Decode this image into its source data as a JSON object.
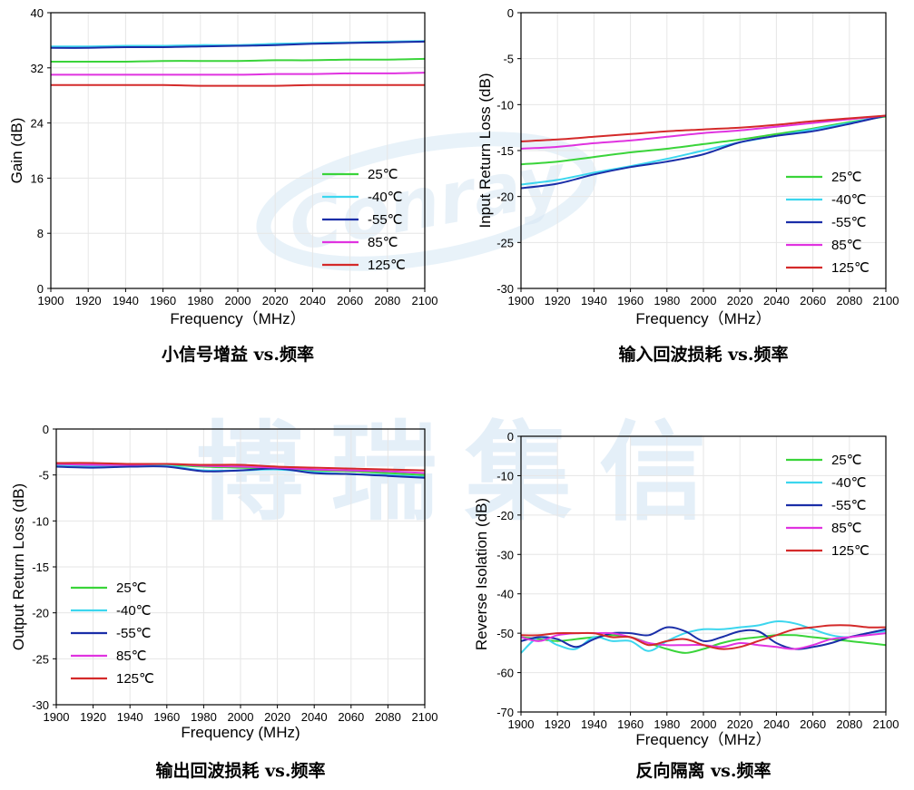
{
  "watermark": {
    "logo_text": "Conray",
    "text": "博瑞集信"
  },
  "chart_data": [
    {
      "type": "line",
      "id": "gain",
      "caption": "小信号增益 vs.频率",
      "xlabel": "Frequency（MHz）",
      "ylabel": "Gain (dB)",
      "xlim": [
        1900,
        2100
      ],
      "ylim": [
        0,
        40
      ],
      "xticks": [
        1900,
        1920,
        1940,
        1960,
        1980,
        2000,
        2020,
        2040,
        2060,
        2080,
        2100
      ],
      "yticks": [
        0,
        8,
        16,
        24,
        32,
        40
      ],
      "grid": true,
      "legend_position": "center-right",
      "x": [
        1900,
        1920,
        1940,
        1960,
        1980,
        2000,
        2020,
        2040,
        2060,
        2080,
        2100
      ],
      "series": [
        {
          "name": "25℃",
          "color": "#3ad43a",
          "values": [
            32.9,
            32.9,
            32.9,
            33.0,
            33.0,
            33.0,
            33.1,
            33.1,
            33.2,
            33.2,
            33.3
          ]
        },
        {
          "name": "-40℃",
          "color": "#3cd6ee",
          "values": [
            35.1,
            35.1,
            35.2,
            35.2,
            35.3,
            35.3,
            35.5,
            35.6,
            35.7,
            35.8,
            35.9
          ]
        },
        {
          "name": "-55℃",
          "color": "#1a2ea8",
          "values": [
            34.9,
            34.9,
            35.0,
            35.0,
            35.1,
            35.2,
            35.3,
            35.5,
            35.6,
            35.7,
            35.8
          ]
        },
        {
          "name": "85℃",
          "color": "#e033e0",
          "values": [
            31.0,
            31.0,
            31.0,
            31.0,
            31.0,
            31.0,
            31.1,
            31.1,
            31.2,
            31.2,
            31.3
          ]
        },
        {
          "name": "125℃",
          "color": "#d42a2a",
          "values": [
            29.5,
            29.5,
            29.5,
            29.5,
            29.4,
            29.4,
            29.4,
            29.5,
            29.5,
            29.5,
            29.5
          ]
        }
      ]
    },
    {
      "type": "line",
      "id": "input-return-loss",
      "caption": "输入回波损耗 vs.频率",
      "xlabel": "Frequency（MHz）",
      "ylabel": "Input Return Loss (dB)",
      "xlim": [
        1900,
        2100
      ],
      "ylim": [
        -30,
        0
      ],
      "xticks": [
        1900,
        1920,
        1940,
        1960,
        1980,
        2000,
        2020,
        2040,
        2060,
        2080,
        2100
      ],
      "yticks": [
        -30,
        -25,
        -20,
        -15,
        -10,
        -5,
        0
      ],
      "grid": true,
      "legend_position": "bottom-right",
      "x": [
        1900,
        1920,
        1940,
        1960,
        1980,
        2000,
        2020,
        2040,
        2060,
        2080,
        2100
      ],
      "series": [
        {
          "name": "25℃",
          "color": "#3ad43a",
          "values": [
            -16.5,
            -16.2,
            -15.7,
            -15.2,
            -14.8,
            -14.3,
            -13.8,
            -13.2,
            -12.6,
            -11.9,
            -11.3
          ]
        },
        {
          "name": "-40℃",
          "color": "#3cd6ee",
          "values": [
            -18.7,
            -18.2,
            -17.4,
            -16.7,
            -15.9,
            -15.0,
            -14.1,
            -13.4,
            -12.7,
            -12.0,
            -11.2
          ]
        },
        {
          "name": "-55℃",
          "color": "#1a2ea8",
          "values": [
            -19.1,
            -18.6,
            -17.6,
            -16.8,
            -16.2,
            -15.4,
            -14.1,
            -13.4,
            -12.9,
            -12.1,
            -11.2
          ]
        },
        {
          "name": "85℃",
          "color": "#e033e0",
          "values": [
            -14.8,
            -14.6,
            -14.2,
            -13.9,
            -13.5,
            -13.1,
            -12.8,
            -12.4,
            -12.0,
            -11.6,
            -11.2
          ]
        },
        {
          "name": "125℃",
          "color": "#d42a2a",
          "values": [
            -14.0,
            -13.8,
            -13.5,
            -13.2,
            -12.9,
            -12.7,
            -12.5,
            -12.2,
            -11.8,
            -11.5,
            -11.2
          ]
        }
      ]
    },
    {
      "type": "line",
      "id": "output-return-loss",
      "caption": "输出回波损耗 vs.频率",
      "xlabel": "Frequency (MHz)",
      "ylabel": "Output Return Loss (dB)",
      "xlim": [
        1900,
        2100
      ],
      "ylim": [
        -30,
        0
      ],
      "xticks": [
        1900,
        1920,
        1940,
        1960,
        1980,
        2000,
        2020,
        2040,
        2060,
        2080,
        2100
      ],
      "yticks": [
        -30,
        -25,
        -20,
        -15,
        -10,
        -5,
        0
      ],
      "grid": true,
      "legend_position": "bottom-left",
      "x": [
        1900,
        1920,
        1940,
        1960,
        1980,
        2000,
        2020,
        2040,
        2060,
        2080,
        2100
      ],
      "series": [
        {
          "name": "25℃",
          "color": "#3ad43a",
          "values": [
            -3.9,
            -4.0,
            -4.0,
            -3.9,
            -4.1,
            -4.2,
            -4.3,
            -4.5,
            -4.6,
            -4.8,
            -5.0
          ]
        },
        {
          "name": "-40℃",
          "color": "#3cd6ee",
          "values": [
            -4.0,
            -4.1,
            -4.1,
            -4.0,
            -4.5,
            -4.5,
            -4.4,
            -4.7,
            -4.9,
            -5.0,
            -5.2
          ]
        },
        {
          "name": "-55℃",
          "color": "#1a2ea8",
          "values": [
            -4.1,
            -4.2,
            -4.1,
            -4.1,
            -4.6,
            -4.5,
            -4.3,
            -4.8,
            -4.9,
            -5.1,
            -5.3
          ]
        },
        {
          "name": "85℃",
          "color": "#e033e0",
          "values": [
            -3.8,
            -3.9,
            -3.9,
            -3.8,
            -4.0,
            -4.1,
            -4.2,
            -4.4,
            -4.5,
            -4.6,
            -4.8
          ]
        },
        {
          "name": "125℃",
          "color": "#d42a2a",
          "values": [
            -3.7,
            -3.7,
            -3.8,
            -3.8,
            -3.9,
            -3.9,
            -4.1,
            -4.2,
            -4.3,
            -4.4,
            -4.5
          ]
        }
      ]
    },
    {
      "type": "line",
      "id": "reverse-isolation",
      "caption": "反向隔离 vs.频率",
      "xlabel": "Frequency（MHz）",
      "ylabel": "Reverse Isolation (dB)",
      "xlim": [
        1900,
        2100
      ],
      "ylim": [
        -70,
        0
      ],
      "xticks": [
        1900,
        1920,
        1940,
        1960,
        1980,
        2000,
        2020,
        2040,
        2060,
        2080,
        2100
      ],
      "yticks": [
        -70,
        -60,
        -50,
        -40,
        -30,
        -20,
        -10,
        0
      ],
      "grid": true,
      "legend_position": "top-right",
      "x": [
        1900,
        1910,
        1920,
        1930,
        1940,
        1950,
        1960,
        1970,
        1980,
        1990,
        2000,
        2010,
        2020,
        2030,
        2040,
        2050,
        2060,
        2070,
        2080,
        2090,
        2100
      ],
      "series": [
        {
          "name": "25℃",
          "color": "#3ad43a",
          "values": [
            -51,
            -51.5,
            -52,
            -51.5,
            -51,
            -50.5,
            -51,
            -52.5,
            -54,
            -55,
            -54,
            -52.5,
            -51.5,
            -51,
            -50.5,
            -50.5,
            -51,
            -51.5,
            -52,
            -52.5,
            -53
          ]
        },
        {
          "name": "-40℃",
          "color": "#3cd6ee",
          "values": [
            -55,
            -51,
            -53,
            -54,
            -51,
            -52,
            -52,
            -54.5,
            -52,
            -50,
            -49,
            -49,
            -48.5,
            -48,
            -47,
            -47.5,
            -49,
            -50.5,
            -51,
            -50,
            -49.5
          ]
        },
        {
          "name": "-55℃",
          "color": "#1a2ea8",
          "values": [
            -52,
            -51,
            -51.5,
            -53.5,
            -51.5,
            -50,
            -50,
            -50.5,
            -48.5,
            -49.5,
            -52,
            -51,
            -49.5,
            -49.5,
            -52.5,
            -54,
            -53.5,
            -52.5,
            -51,
            -50,
            -49
          ]
        },
        {
          "name": "85℃",
          "color": "#e033e0",
          "values": [
            -51,
            -52,
            -50.5,
            -50,
            -50,
            -50,
            -51,
            -52.5,
            -53,
            -53,
            -53,
            -53.5,
            -52.5,
            -53,
            -53.5,
            -54,
            -53,
            -51.5,
            -51,
            -50.5,
            -50
          ]
        },
        {
          "name": "125℃",
          "color": "#d42a2a",
          "values": [
            -50.5,
            -50.5,
            -50,
            -50,
            -50,
            -51,
            -51,
            -53,
            -52,
            -51.5,
            -53,
            -54,
            -53.5,
            -52,
            -50.5,
            -49,
            -48.5,
            -48,
            -48,
            -48.5,
            -48.5
          ]
        }
      ]
    }
  ]
}
